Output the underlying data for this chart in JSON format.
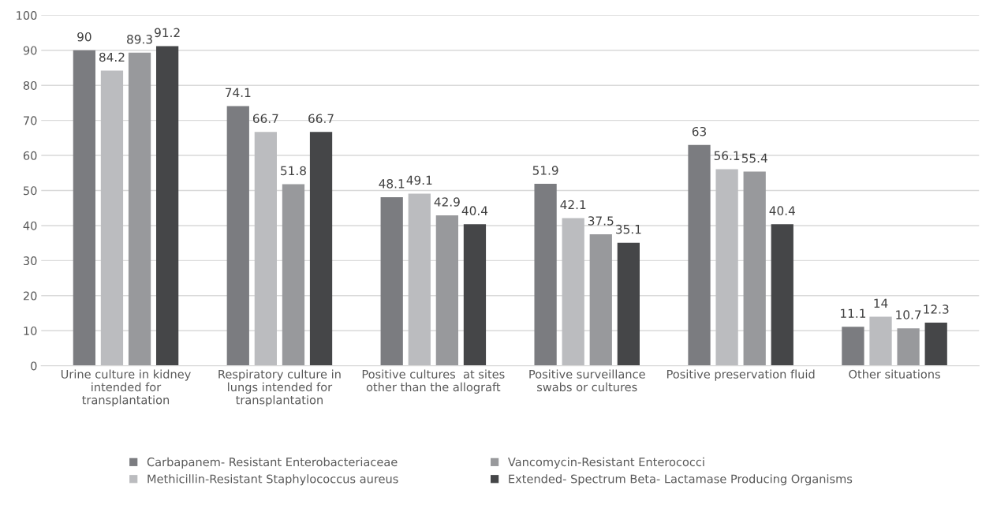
{
  "chart_data": {
    "type": "bar",
    "categories": [
      "Urine culture in kidney\nintended for\ntransplantation",
      "Respiratory culture in\nlungs intended for\ntransplantation",
      "Positive cultures  at sites\nother than the allograft",
      "Positive surveillance\nswabs or cultures",
      "Positive preservation fluid",
      "Other situations"
    ],
    "series": [
      {
        "name": "Carbapanem- Resistant Enterobacteriaceae",
        "color": "#7b7c80",
        "values": [
          90,
          74.1,
          48.1,
          51.9,
          63,
          11.1
        ]
      },
      {
        "name": "Methicillin-Resistant Staphylococcus aureus",
        "color": "#bbbcbf",
        "values": [
          84.2,
          66.7,
          49.1,
          42.1,
          56.1,
          14
        ]
      },
      {
        "name": "Vancomycin-Resistant Enterococci",
        "color": "#98999c",
        "values": [
          89.3,
          51.8,
          42.9,
          37.5,
          55.4,
          10.7
        ]
      },
      {
        "name": "Extended- Spectrum Beta- Lactamase Producing Organisms",
        "color": "#454648",
        "values": [
          91.2,
          66.7,
          40.4,
          35.1,
          40.4,
          12.3
        ]
      }
    ],
    "ylim": [
      0,
      100
    ],
    "yticks": [
      0,
      10,
      20,
      30,
      40,
      50,
      60,
      70,
      80,
      90,
      100
    ],
    "grid": "y",
    "legend": "bottom",
    "data_labels": true
  }
}
